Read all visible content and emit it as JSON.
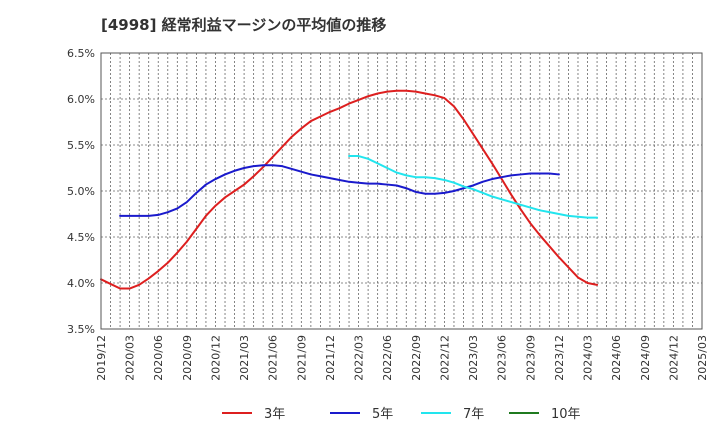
{
  "chart_data": {
    "type": "line",
    "title": "[4998]  経常利益マージンの平均値の推移",
    "xlabel": "",
    "ylabel": "",
    "ylim": [
      3.5,
      6.5
    ],
    "y_ticks": [
      "3.5%",
      "4.0%",
      "4.5%",
      "5.0%",
      "5.5%",
      "6.0%",
      "6.5%"
    ],
    "y_tick_values": [
      3.5,
      4.0,
      4.5,
      5.0,
      5.5,
      6.0,
      6.5
    ],
    "x_ticks": [
      "2019/12",
      "2020/03",
      "2020/06",
      "2020/09",
      "2020/12",
      "2021/03",
      "2021/06",
      "2021/09",
      "2021/12",
      "2022/03",
      "2022/06",
      "2022/09",
      "2022/12",
      "2023/03",
      "2023/06",
      "2023/09",
      "2023/12",
      "2024/03",
      "2024/06",
      "2024/09",
      "2024/12",
      "2025/03"
    ],
    "grid": true,
    "legend_position": "bottom",
    "series": [
      {
        "name": "3年",
        "color": "#dd1f1f",
        "values": [
          4.04,
          3.99,
          3.94,
          3.94,
          3.98,
          4.05,
          4.13,
          4.22,
          4.33,
          4.45,
          4.59,
          4.73,
          4.84,
          4.93,
          5.0,
          5.07,
          5.16,
          5.26,
          5.37,
          5.48,
          5.59,
          5.68,
          5.76,
          5.81,
          5.86,
          5.9,
          5.95,
          5.99,
          6.03,
          6.06,
          6.08,
          6.09,
          6.09,
          6.08,
          6.06,
          6.04,
          6.01,
          5.92,
          5.78,
          5.62,
          5.46,
          5.3,
          5.13,
          4.96,
          4.8,
          4.65,
          4.52,
          4.4,
          4.28,
          4.17,
          4.06,
          4.0,
          3.98
        ]
      },
      {
        "name": "5年",
        "color": "#1a1acc",
        "values": [
          null,
          null,
          4.73,
          4.73,
          4.73,
          4.73,
          4.74,
          4.77,
          4.81,
          4.88,
          4.98,
          5.07,
          5.13,
          5.18,
          5.22,
          5.25,
          5.27,
          5.28,
          5.28,
          5.27,
          5.24,
          5.21,
          5.18,
          5.16,
          5.14,
          5.12,
          5.1,
          5.09,
          5.08,
          5.08,
          5.07,
          5.06,
          5.03,
          4.99,
          4.97,
          4.97,
          4.98,
          5.0,
          5.03,
          5.06,
          5.1,
          5.13,
          5.15,
          5.17,
          5.18,
          5.19,
          5.19,
          5.19,
          5.18
        ]
      },
      {
        "name": "7年",
        "color": "#22e5ee",
        "values": [
          null,
          null,
          null,
          null,
          null,
          null,
          null,
          null,
          null,
          null,
          null,
          null,
          null,
          null,
          null,
          null,
          null,
          null,
          null,
          null,
          null,
          null,
          null,
          null,
          null,
          null,
          5.38,
          5.38,
          5.35,
          5.3,
          5.25,
          5.2,
          5.17,
          5.15,
          5.15,
          5.14,
          5.12,
          5.09,
          5.05,
          5.02,
          4.98,
          4.94,
          4.91,
          4.88,
          4.85,
          4.82,
          4.79,
          4.77,
          4.75,
          4.73,
          4.72,
          4.71,
          4.71
        ]
      },
      {
        "name": "10年",
        "color": "#1f7a1f",
        "values": []
      }
    ]
  }
}
